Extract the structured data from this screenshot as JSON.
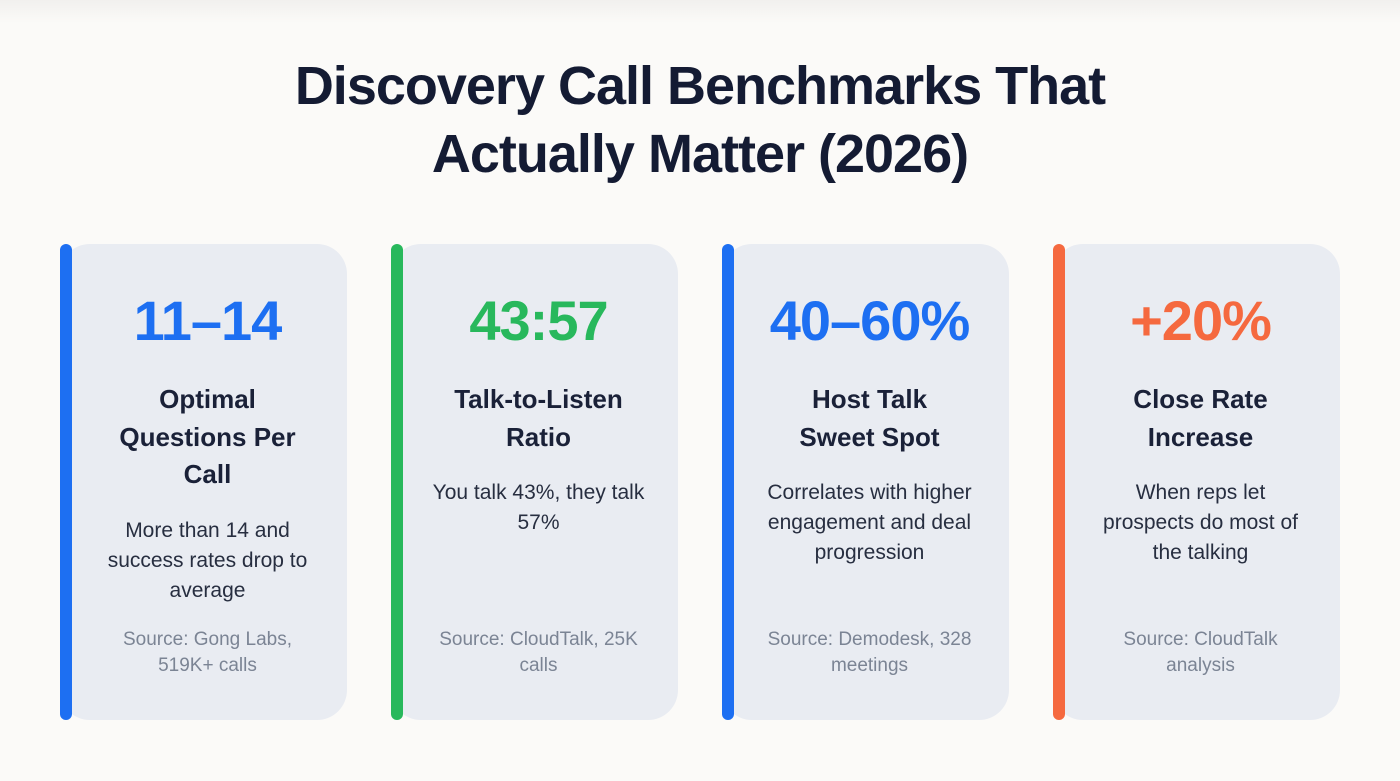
{
  "title": "Discovery Call Benchmarks That\nActually Matter (2026)",
  "cards": [
    {
      "stat": "11–14",
      "accent_color": "#1d6ff2",
      "heading": "Optimal Questions Per Call",
      "description": "More than 14 and success rates drop to average",
      "source": "Source: Gong Labs, 519K+ calls"
    },
    {
      "stat": "43:57",
      "accent_color": "#28b85c",
      "heading": "Talk-to-Listen Ratio",
      "description": "You talk 43%, they talk 57%",
      "source": "Source: CloudTalk, 25K calls"
    },
    {
      "stat": "40–60%",
      "accent_color": "#1d6ff2",
      "heading": "Host Talk Sweet Spot",
      "description": "Correlates with higher engagement and deal progression",
      "source": "Source: Demodesk, 328 meetings"
    },
    {
      "stat": "+20%",
      "accent_color": "#f5693f",
      "heading": "Close Rate Increase",
      "description": "When reps let prospects do most of the talking",
      "source": "Source: CloudTalk analysis"
    }
  ]
}
